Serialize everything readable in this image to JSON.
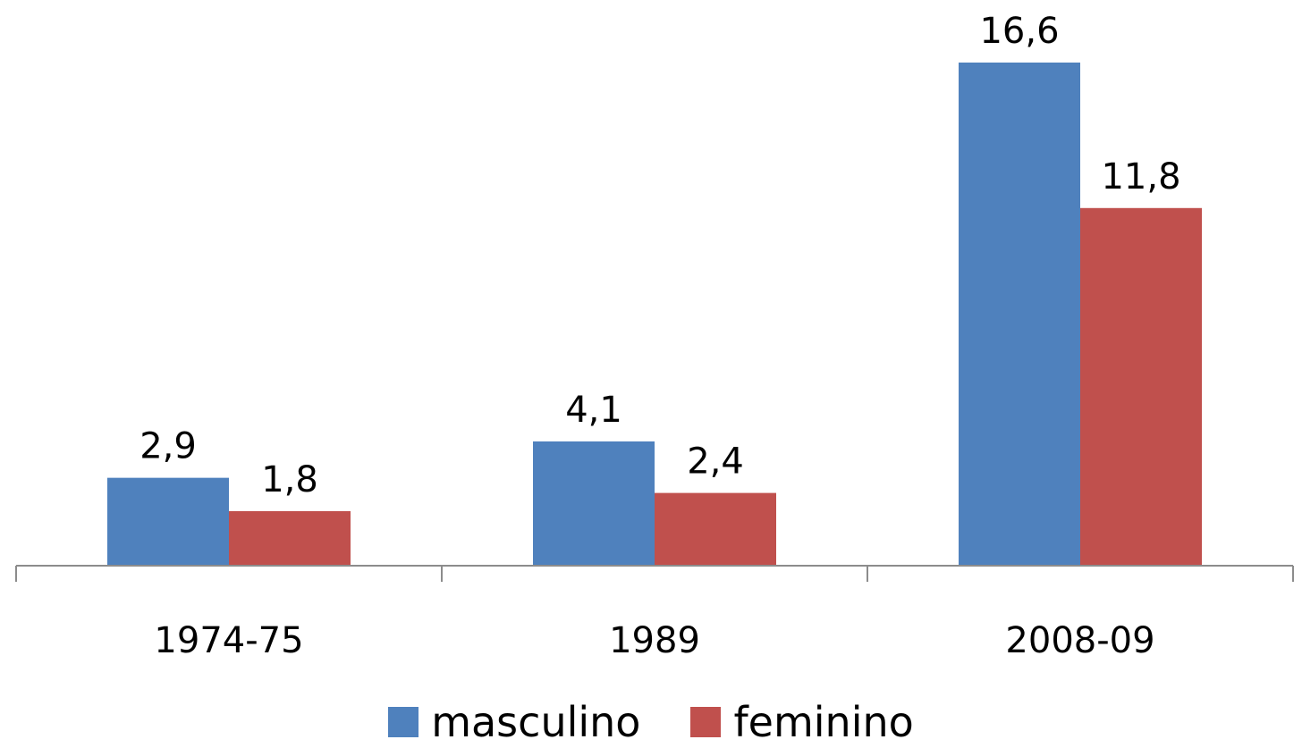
{
  "chart_data": {
    "type": "bar",
    "categories": [
      "1974-75",
      "1989",
      "2008-09"
    ],
    "series": [
      {
        "name": "masculino",
        "values": [
          2.9,
          4.1,
          16.6
        ],
        "labels": [
          "2,9",
          "4,1",
          "16,6"
        ],
        "color": "#4F81BD"
      },
      {
        "name": "feminino",
        "values": [
          1.8,
          2.4,
          11.8
        ],
        "labels": [
          "1,8",
          "2,4",
          "11,8"
        ],
        "color": "#C0504D"
      }
    ],
    "ylim": [
      0,
      16.6
    ],
    "grid": false,
    "legend_position": "bottom",
    "data_labels": true,
    "axis_color": "#8c8c8c"
  }
}
